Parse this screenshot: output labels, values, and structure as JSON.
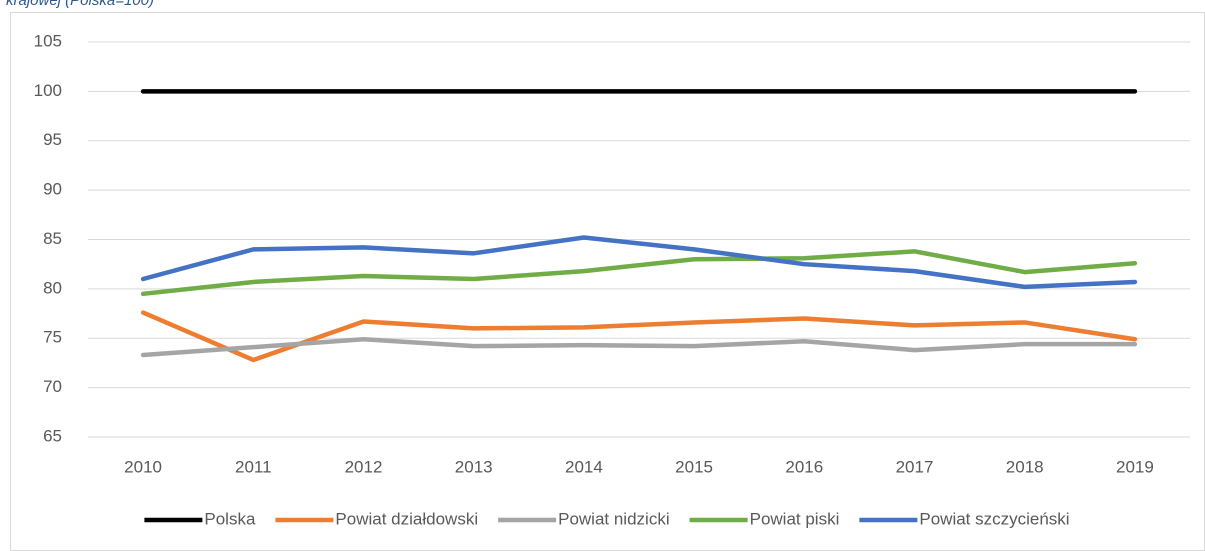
{
  "chart_data": {
    "type": "line",
    "title": "krajowej (Polska=100)",
    "categories": [
      "2010",
      "2011",
      "2012",
      "2013",
      "2014",
      "2015",
      "2016",
      "2017",
      "2018",
      "2019"
    ],
    "ylim": [
      65,
      105
    ],
    "yticks": [
      65,
      70,
      75,
      80,
      85,
      90,
      95,
      100,
      105
    ],
    "grid": true,
    "legend": "bottom",
    "series": [
      {
        "name": "Polska",
        "color": "#000000",
        "values": [
          100,
          100,
          100,
          100,
          100,
          100,
          100,
          100,
          100,
          100
        ]
      },
      {
        "name": "Powiat działdowski",
        "color": "#ed7d31",
        "values": [
          77.6,
          72.8,
          76.7,
          76.0,
          76.1,
          76.6,
          77.0,
          76.3,
          76.6,
          74.9
        ]
      },
      {
        "name": "Powiat nidzicki",
        "color": "#a5a5a5",
        "values": [
          73.3,
          74.1,
          74.9,
          74.2,
          74.3,
          74.2,
          74.7,
          73.8,
          74.4,
          74.4
        ]
      },
      {
        "name": "Powiat piski",
        "color": "#70ad47",
        "values": [
          79.5,
          80.7,
          81.3,
          81.0,
          81.8,
          83.0,
          83.1,
          83.8,
          81.7,
          82.6
        ]
      },
      {
        "name": "Powiat szczycieński",
        "color": "#4472c4",
        "values": [
          81.0,
          84.0,
          84.2,
          83.6,
          85.2,
          84.0,
          82.5,
          81.8,
          80.2,
          80.7
        ]
      }
    ]
  }
}
